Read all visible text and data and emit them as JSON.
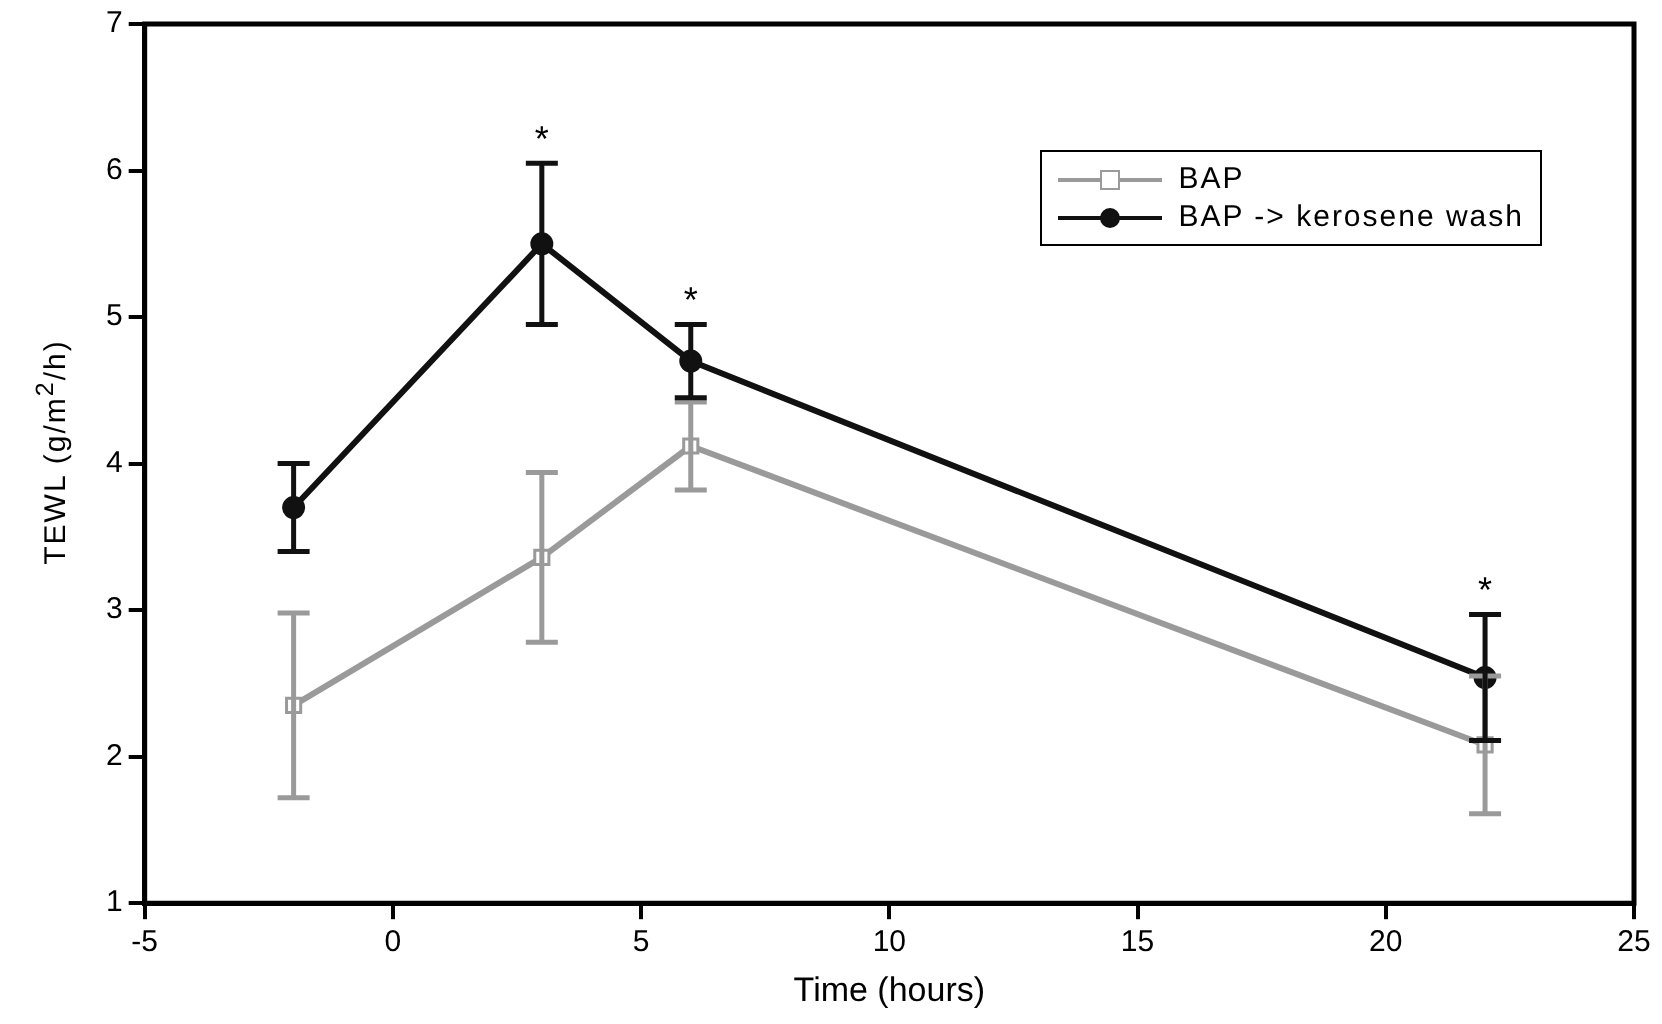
{
  "chart_data": {
    "type": "line",
    "xlabel": "Time (hours)",
    "ylabel": "TEWL (g/m$^{2}$/h)",
    "xlim": [
      -5,
      25
    ],
    "xticks": [
      -5,
      0,
      5,
      10,
      15,
      20,
      25
    ],
    "ylim": [
      1,
      7
    ],
    "yticks": [
      1,
      2,
      3,
      4,
      5,
      6,
      7
    ],
    "grid": false,
    "legend": "top right",
    "line_style": "solid",
    "series": [
      {
        "name": "BAP",
        "color": "#9a9a9a",
        "marker": "square",
        "x": [
          -2,
          3,
          6,
          22
        ],
        "values": [
          2.35,
          3.36,
          4.12,
          2.08
        ],
        "errors": [
          0.63,
          0.58,
          0.3,
          0.47
        ]
      },
      {
        "name": "BAP -> kerosene wash",
        "color": "#111111",
        "marker": "circle",
        "x": [
          -2,
          3,
          6,
          22
        ],
        "values": [
          3.7,
          5.5,
          4.7,
          2.54
        ],
        "errors": [
          0.3,
          0.55,
          0.25,
          0.43
        ]
      }
    ],
    "annotations": [
      {
        "text": "*",
        "x": 3,
        "y": 6.05
      },
      {
        "text": "*",
        "x": 6,
        "y": 4.95
      },
      {
        "text": "*",
        "x": 22,
        "y": 2.97
      }
    ]
  }
}
